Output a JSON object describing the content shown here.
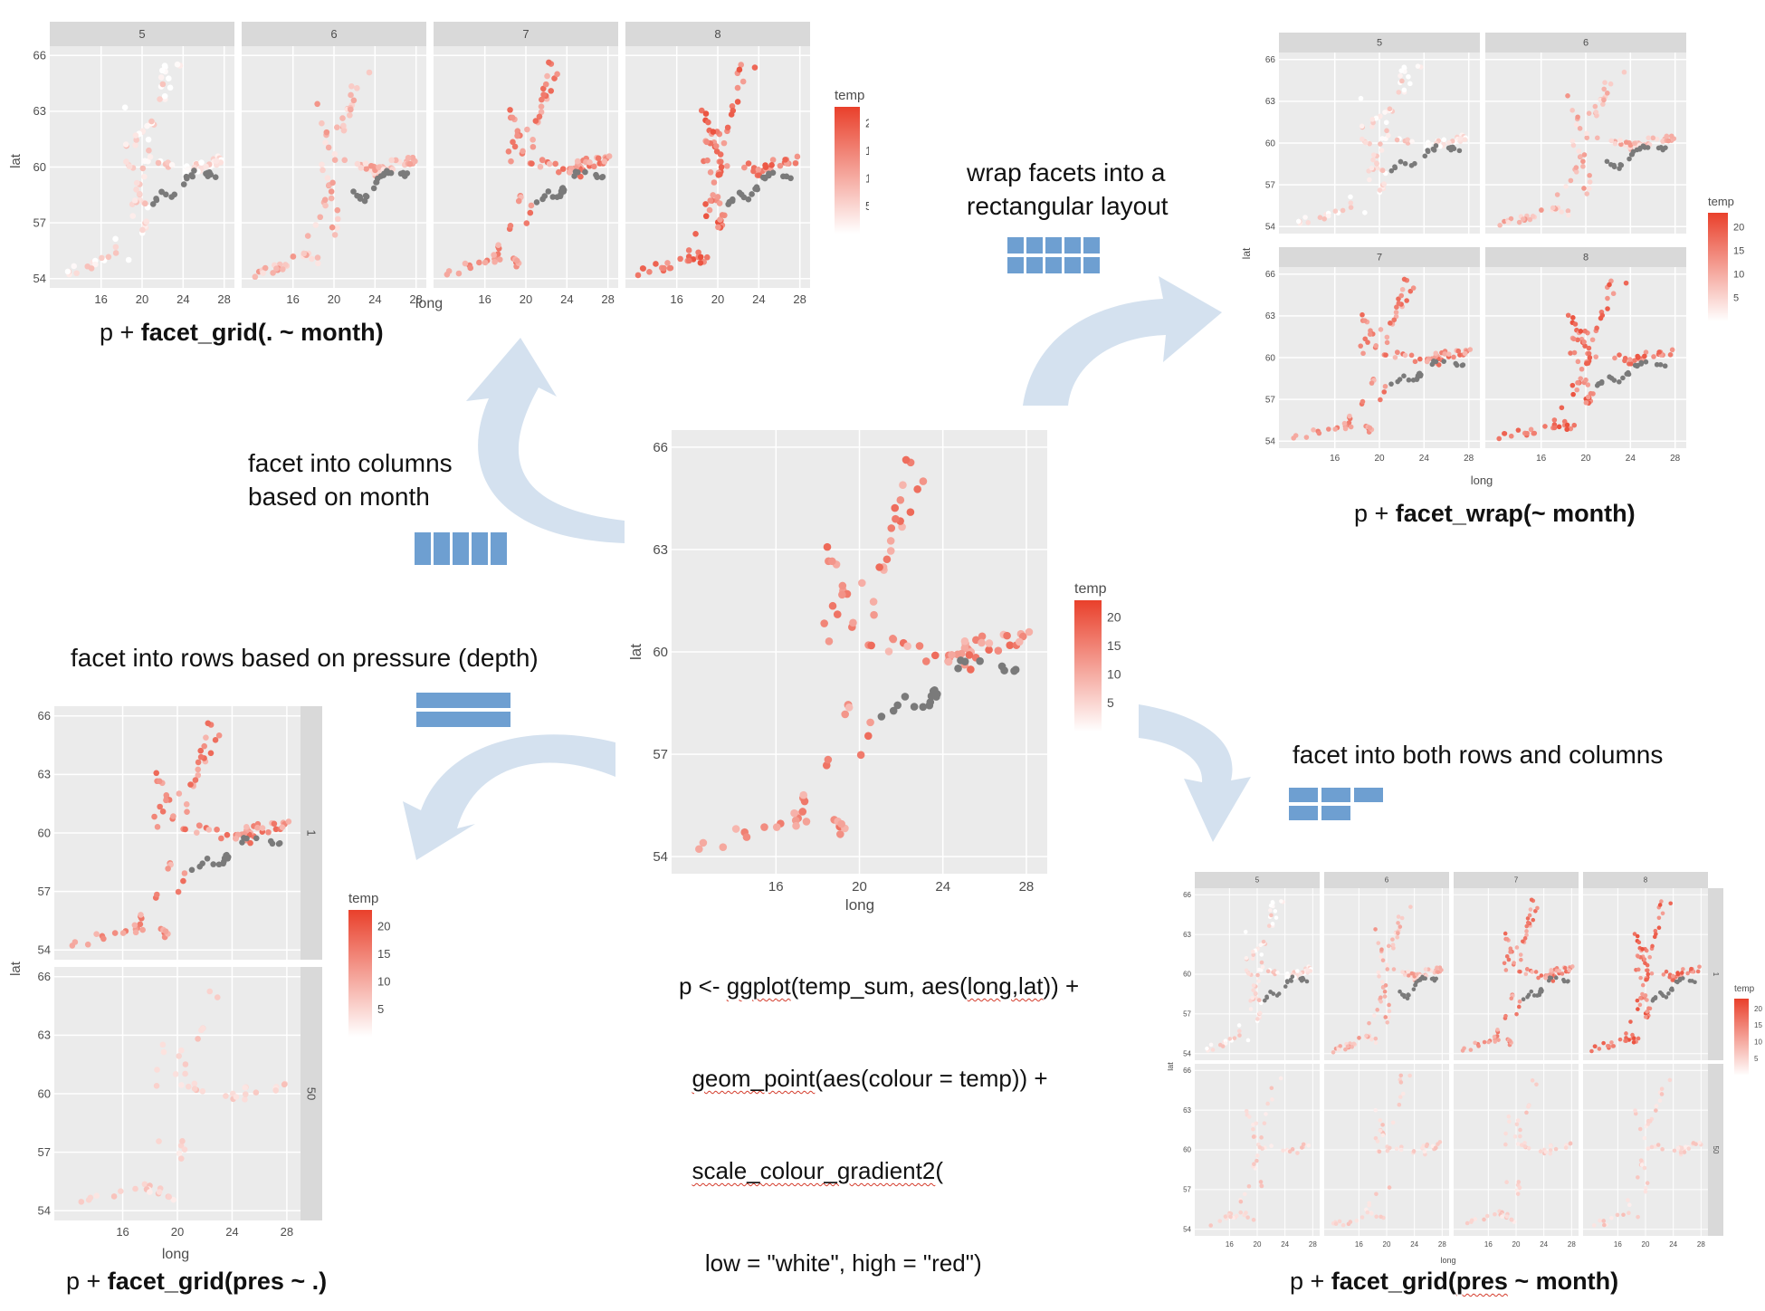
{
  "labels": {
    "columns": [
      "facet into columns",
      "based on month"
    ],
    "wrap": [
      "wrap facets into a",
      "rectangular layout"
    ],
    "rows": "facet into rows based on pressure (depth)",
    "both": "facet into both rows and columns"
  },
  "captions": {
    "grid_cols": {
      "pre": "p + ",
      "fn": "facet_grid",
      "arg": "(. ~ month)"
    },
    "wrap": {
      "pre": "p + ",
      "fn": "facet_wrap",
      "arg": "(~ month)"
    },
    "grid_rows": {
      "pre": "p + ",
      "fn": "facet_grid",
      "arg": "(pres ~ .)"
    },
    "grid_both": {
      "pre": "p + ",
      "fn": "facet_grid",
      "arg_a": "(",
      "arg_b": "pres",
      "arg_c": " ~ month)"
    }
  },
  "code": {
    "line1_a": "p <- ",
    "line1_b": "ggplot",
    "line1_c": "(temp_sum, aes(",
    "line1_d": "long,lat",
    "line1_e": ")) +",
    "line2_a": "  ",
    "line2_b": "geom_point",
    "line2_c": "(aes(colour = temp)) +",
    "line3_a": "  ",
    "line3_b": "scale_colour_gradient2",
    "line3_c": "(",
    "line4": "    low = \"white\", high = \"red\")"
  },
  "colors": {
    "arrow": "#d4e1ef",
    "icon": "#6e9fd1",
    "panel": "#ebebeb",
    "strip": "#d9d9d9",
    "grid": "#ffffff",
    "low": "#ffffff",
    "high": "#e9402b",
    "missing": "#7a7a7a"
  },
  "chart_data": {
    "type": "scatter",
    "xlabel": "long",
    "ylabel": "lat",
    "xlim": [
      11,
      29
    ],
    "ylim": [
      53.5,
      66.5
    ],
    "x_ticks": [
      16,
      20,
      24,
      28
    ],
    "y_ticks": [
      54,
      57,
      60,
      63,
      66
    ],
    "legend": {
      "title": "temp",
      "ticks": [
        20,
        15,
        10,
        5
      ],
      "range": [
        0,
        23
      ]
    },
    "month_strips": [
      "5",
      "6",
      "7",
      "8"
    ],
    "pres_strips": [
      "1",
      "50"
    ],
    "panels": [
      {
        "name": "main",
        "title": ""
      },
      {
        "name": "grid-cols",
        "facets": [
          "5",
          "6",
          "7",
          "8"
        ]
      },
      {
        "name": "wrap",
        "facets": [
          "5",
          "6",
          "7",
          "8"
        ]
      },
      {
        "name": "grid-rows",
        "facets": [
          "1",
          "50"
        ]
      },
      {
        "name": "grid-both",
        "facets": [
          "5",
          "6",
          "7",
          "8",
          "1",
          "50"
        ]
      }
    ]
  }
}
